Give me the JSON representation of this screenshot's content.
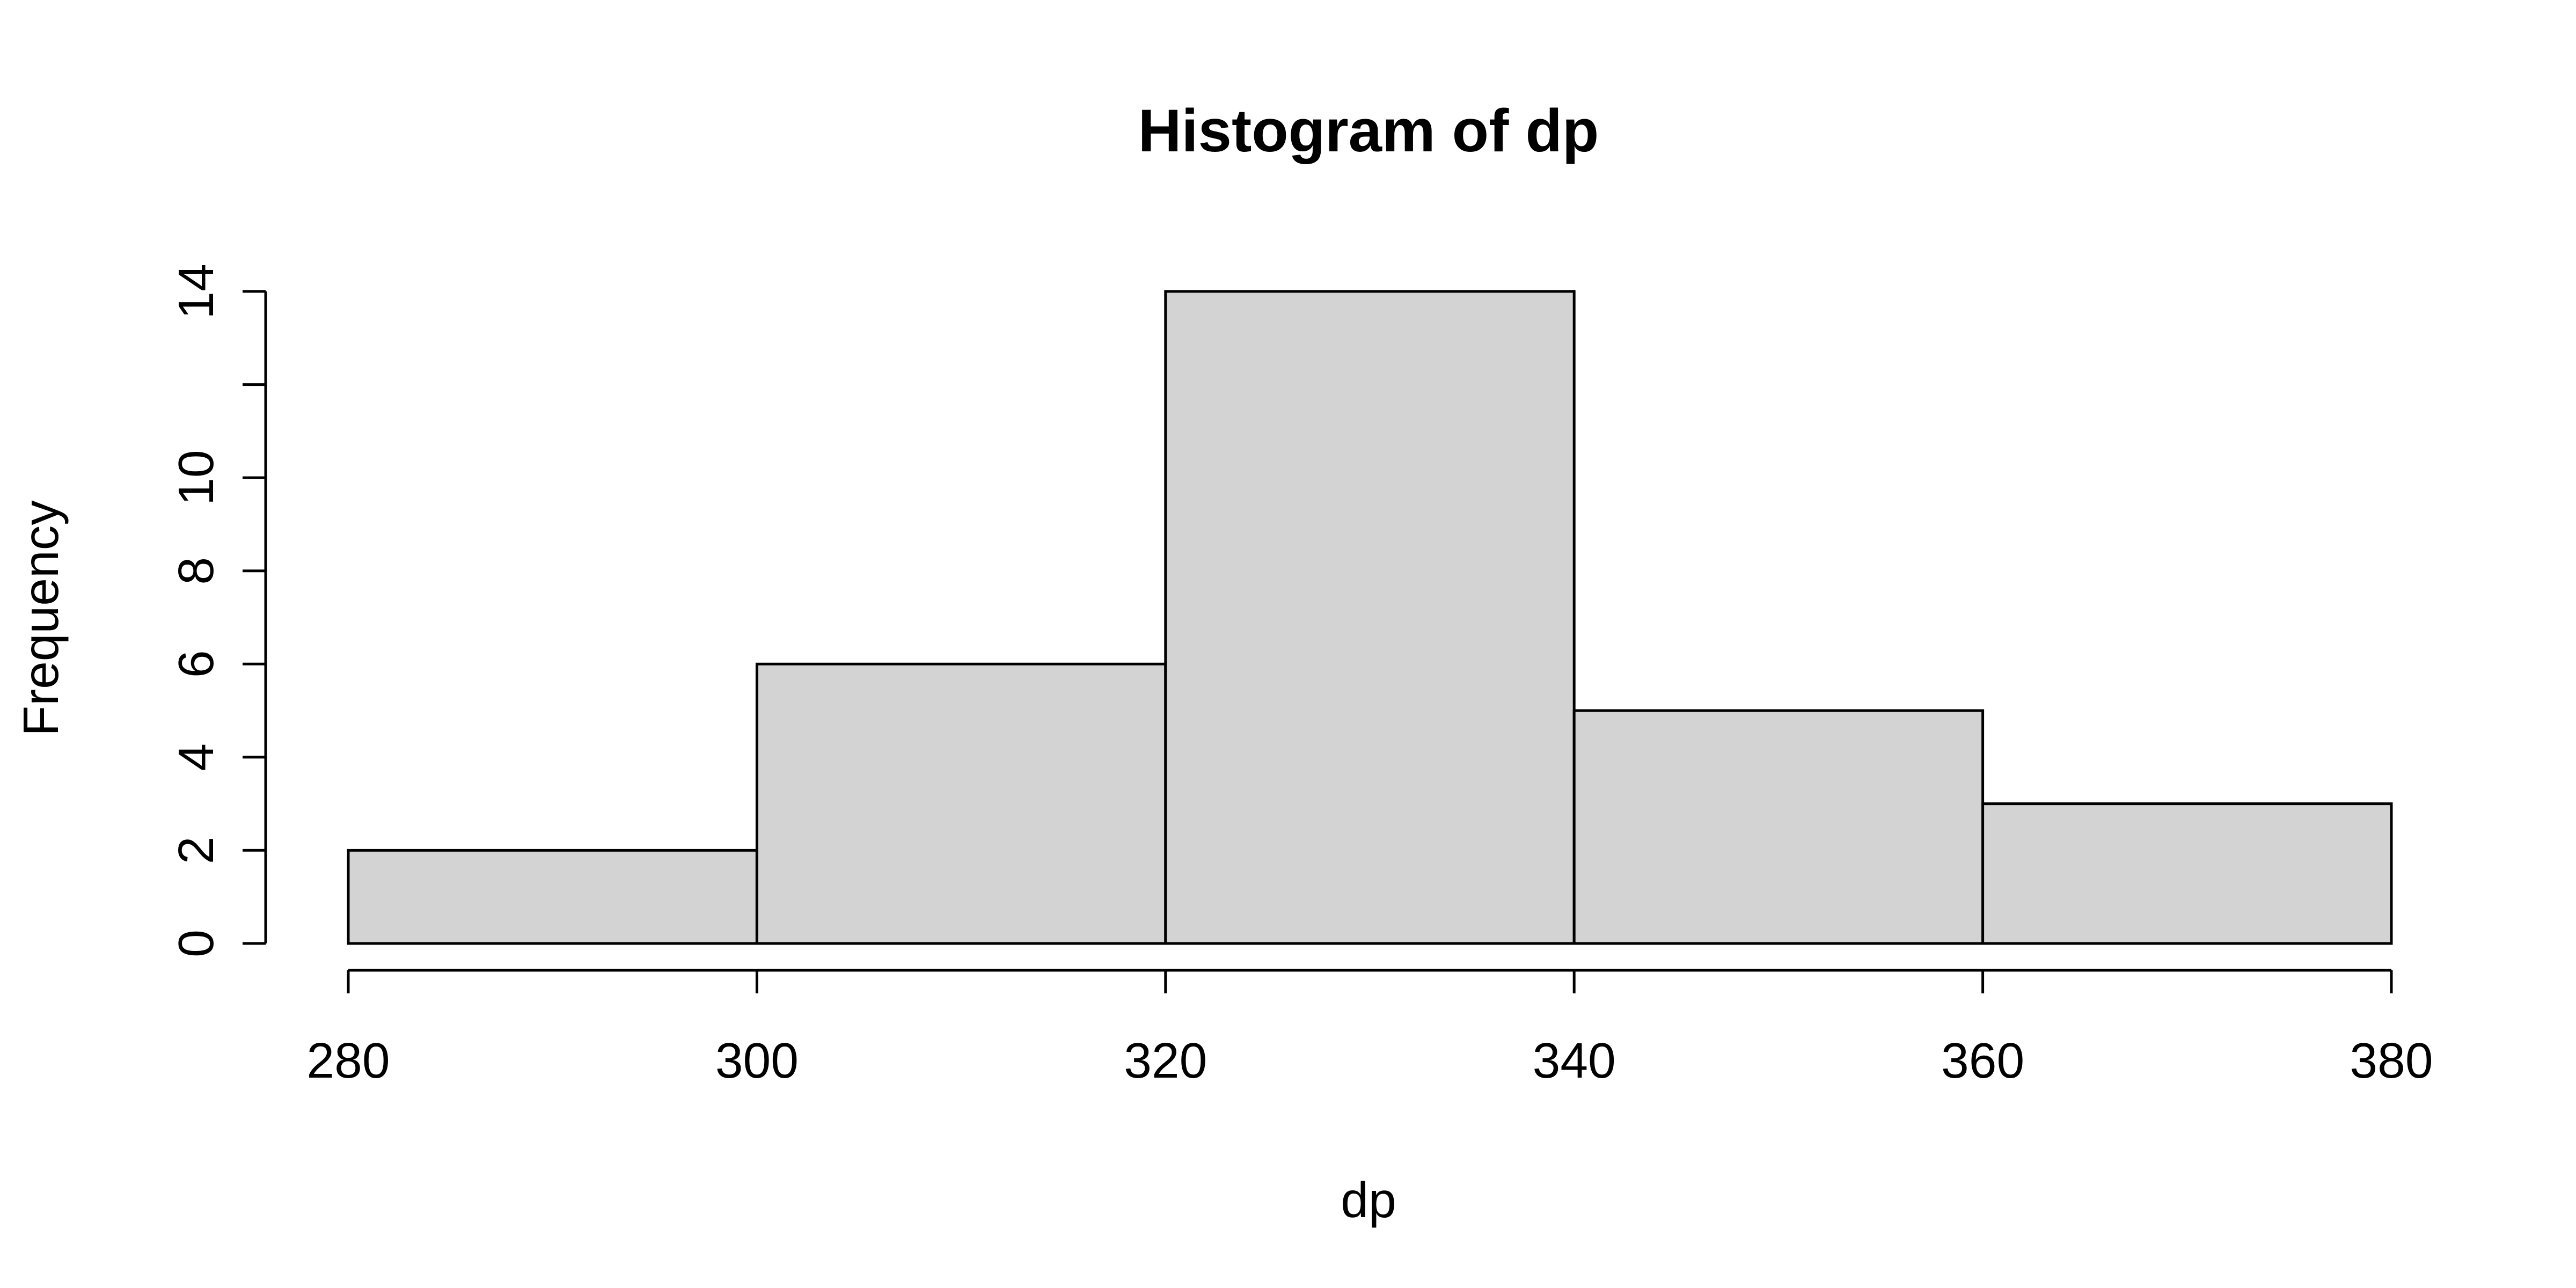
{
  "chart_data": {
    "type": "bar",
    "title": "Histogram of dp",
    "xlabel": "dp",
    "ylabel": "Frequency",
    "bins": [
      {
        "start": 280,
        "end": 300,
        "count": 2
      },
      {
        "start": 300,
        "end": 320,
        "count": 6
      },
      {
        "start": 320,
        "end": 340,
        "count": 14
      },
      {
        "start": 340,
        "end": 360,
        "count": 5
      },
      {
        "start": 360,
        "end": 380,
        "count": 3
      }
    ],
    "xlim": [
      280,
      380
    ],
    "ylim": [
      0,
      14
    ],
    "x_ticks": [
      280,
      300,
      320,
      340,
      360,
      380
    ],
    "y_ticks": [
      0,
      2,
      4,
      6,
      8,
      10,
      12,
      14
    ],
    "y_tick_labels": [
      "0",
      "2",
      "4",
      "6",
      "8",
      "10",
      "",
      "14"
    ],
    "grid": false,
    "colors": {
      "bar_fill": "#d3d3d3",
      "bar_stroke": "#000000"
    }
  }
}
